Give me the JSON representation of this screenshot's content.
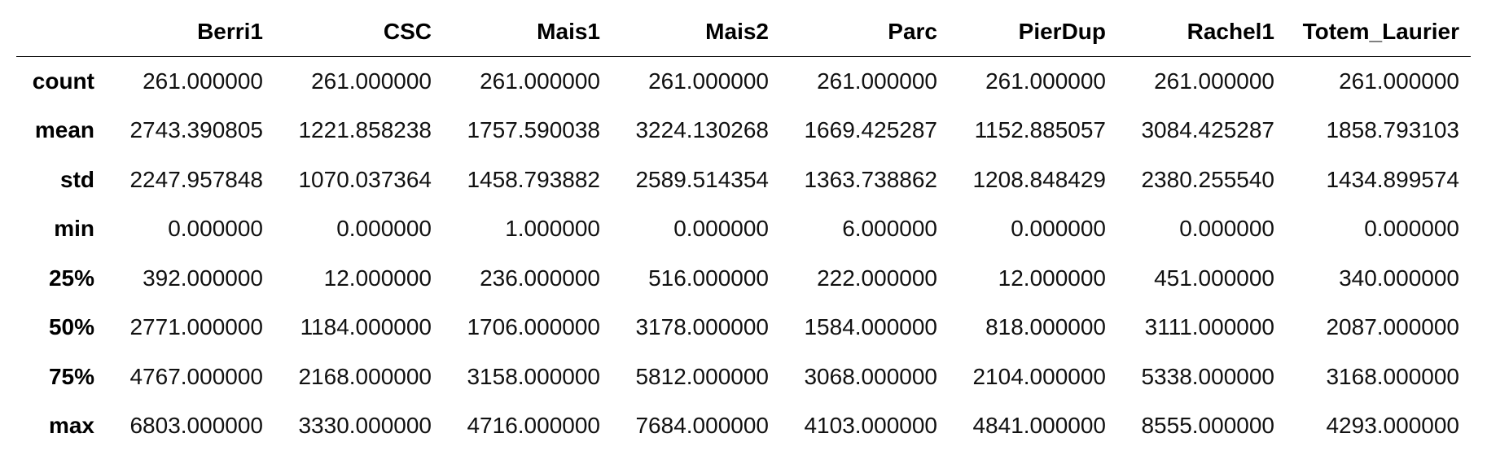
{
  "table": {
    "columns": [
      "",
      "Berri1",
      "CSC",
      "Mais1",
      "Mais2",
      "Parc",
      "PierDup",
      "Rachel1",
      "Totem_Laurier"
    ],
    "rows": [
      {
        "label": "count",
        "values": [
          "261.000000",
          "261.000000",
          "261.000000",
          "261.000000",
          "261.000000",
          "261.000000",
          "261.000000",
          "261.000000"
        ]
      },
      {
        "label": "mean",
        "values": [
          "2743.390805",
          "1221.858238",
          "1757.590038",
          "3224.130268",
          "1669.425287",
          "1152.885057",
          "3084.425287",
          "1858.793103"
        ]
      },
      {
        "label": "std",
        "values": [
          "2247.957848",
          "1070.037364",
          "1458.793882",
          "2589.514354",
          "1363.738862",
          "1208.848429",
          "2380.255540",
          "1434.899574"
        ]
      },
      {
        "label": "min",
        "values": [
          "0.000000",
          "0.000000",
          "1.000000",
          "0.000000",
          "6.000000",
          "0.000000",
          "0.000000",
          "0.000000"
        ]
      },
      {
        "label": "25%",
        "values": [
          "392.000000",
          "12.000000",
          "236.000000",
          "516.000000",
          "222.000000",
          "12.000000",
          "451.000000",
          "340.000000"
        ]
      },
      {
        "label": "50%",
        "values": [
          "2771.000000",
          "1184.000000",
          "1706.000000",
          "3178.000000",
          "1584.000000",
          "818.000000",
          "3111.000000",
          "2087.000000"
        ]
      },
      {
        "label": "75%",
        "values": [
          "4767.000000",
          "2168.000000",
          "3158.000000",
          "5812.000000",
          "3068.000000",
          "2104.000000",
          "5338.000000",
          "3168.000000"
        ]
      },
      {
        "label": "max",
        "values": [
          "6803.000000",
          "3330.000000",
          "4716.000000",
          "7684.000000",
          "4103.000000",
          "4841.000000",
          "8555.000000",
          "4293.000000"
        ]
      }
    ]
  }
}
